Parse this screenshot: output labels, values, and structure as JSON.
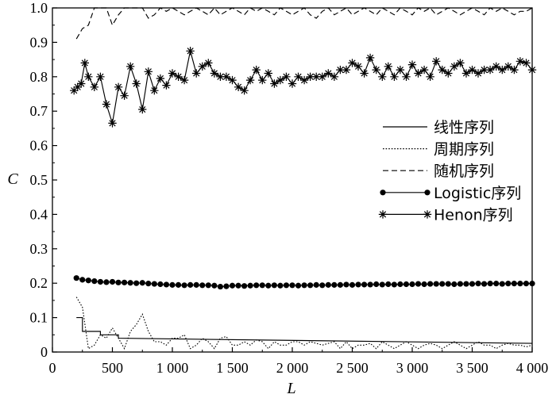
{
  "chart_data": {
    "type": "line",
    "xlabel": "L",
    "ylabel": "C",
    "xlim": [
      0,
      4000
    ],
    "ylim": [
      0,
      1.0
    ],
    "x_ticks": [
      0,
      500,
      1000,
      1500,
      2000,
      2500,
      3000,
      3500,
      4000
    ],
    "x_tick_labels": [
      "0",
      "500",
      "1 000",
      "1 500",
      "2 000",
      "2 500",
      "3 000",
      "3 500",
      "4 000"
    ],
    "y_ticks": [
      0,
      0.1,
      0.2,
      0.3,
      0.4,
      0.5,
      0.6,
      0.7,
      0.8,
      0.9,
      1.0
    ],
    "y_tick_labels": [
      "0",
      "0.1",
      "0.2",
      "0.3",
      "0.4",
      "0.5",
      "0.6",
      "0.7",
      "0.8",
      "0.9",
      "1.0"
    ],
    "grid": false,
    "legend_position": "right-center",
    "series": [
      {
        "name": "线性序列",
        "style": "solid",
        "marker": "none",
        "x": [
          200,
          250,
          250,
          400,
          400,
          550,
          550,
          4000
        ],
        "y": [
          0.1,
          0.1,
          0.06,
          0.06,
          0.05,
          0.05,
          0.04,
          0.025
        ]
      },
      {
        "name": "周期序列",
        "style": "dotted",
        "marker": "none",
        "x": [
          200,
          250,
          300,
          350,
          400,
          450,
          500,
          550,
          600,
          650,
          700,
          750,
          800,
          850,
          900,
          950,
          1000,
          1050,
          1100,
          1150,
          1200,
          1250,
          1300,
          1350,
          1400,
          1450,
          1500,
          1550,
          1600,
          1650,
          1700,
          1750,
          1800,
          1850,
          1900,
          1950,
          2000,
          2050,
          2100,
          2150,
          2200,
          2250,
          2300,
          2350,
          2400,
          2450,
          2500,
          2550,
          2600,
          2650,
          2700,
          2750,
          2800,
          2850,
          2900,
          2950,
          3000,
          3050,
          3100,
          3150,
          3200,
          3250,
          3300,
          3350,
          3400,
          3450,
          3500,
          3550,
          3600,
          3650,
          3700,
          3750,
          3800,
          3850,
          3900,
          3950,
          4000
        ],
        "y": [
          0.16,
          0.13,
          0.01,
          0.02,
          0.05,
          0.04,
          0.07,
          0.04,
          0.01,
          0.06,
          0.08,
          0.11,
          0.06,
          0.03,
          0.03,
          0.02,
          0.04,
          0.04,
          0.05,
          0.01,
          0.02,
          0.04,
          0.03,
          0.01,
          0.04,
          0.045,
          0.02,
          0.02,
          0.03,
          0.02,
          0.035,
          0.03,
          0.01,
          0.03,
          0.02,
          0.02,
          0.03,
          0.03,
          0.02,
          0.03,
          0.025,
          0.02,
          0.025,
          0.03,
          0.01,
          0.03,
          0.01,
          0.02,
          0.02,
          0.025,
          0.01,
          0.03,
          0.02,
          0.01,
          0.02,
          0.03,
          0.02,
          0.01,
          0.02,
          0.025,
          0.02,
          0.01,
          0.02,
          0.03,
          0.02,
          0.01,
          0.02,
          0.03,
          0.02,
          0.02,
          0.01,
          0.02,
          0.025,
          0.02,
          0.02,
          0.015,
          0.02
        ]
      },
      {
        "name": "随机序列",
        "style": "dashed",
        "marker": "none",
        "x": [
          200,
          250,
          300,
          350,
          400,
          450,
          500,
          550,
          600,
          650,
          700,
          750,
          800,
          850,
          900,
          950,
          1000,
          1050,
          1100,
          1150,
          1200,
          1250,
          1300,
          1350,
          1400,
          1450,
          1500,
          1550,
          1600,
          1650,
          1700,
          1750,
          1800,
          1850,
          1900,
          1950,
          2000,
          2050,
          2100,
          2150,
          2200,
          2250,
          2300,
          2350,
          2400,
          2450,
          2500,
          2550,
          2600,
          2650,
          2700,
          2750,
          2800,
          2850,
          2900,
          2950,
          3000,
          3050,
          3100,
          3150,
          3200,
          3250,
          3300,
          3350,
          3400,
          3450,
          3500,
          3550,
          3600,
          3650,
          3700,
          3750,
          3800,
          3850,
          3900,
          3950,
          4000
        ],
        "y": [
          0.91,
          0.94,
          0.95,
          1.0,
          1.0,
          1.0,
          0.95,
          0.98,
          1.0,
          1.0,
          1.0,
          1.0,
          0.97,
          0.98,
          1.0,
          0.99,
          1.0,
          0.99,
          0.98,
          0.99,
          1.0,
          0.99,
          0.98,
          1.0,
          0.98,
          0.99,
          1.0,
          0.99,
          0.98,
          1.0,
          0.99,
          1.0,
          0.99,
          0.98,
          1.0,
          0.99,
          0.98,
          0.99,
          1.0,
          0.98,
          0.97,
          0.99,
          1.0,
          0.98,
          0.99,
          1.0,
          0.98,
          0.99,
          1.0,
          0.99,
          0.98,
          1.0,
          0.99,
          0.98,
          1.0,
          0.99,
          0.98,
          1.0,
          0.99,
          1.0,
          0.98,
          0.99,
          1.0,
          0.99,
          0.98,
          0.99,
          1.0,
          0.99,
          0.98,
          1.0,
          0.99,
          1.0,
          0.99,
          0.98,
          0.99,
          0.99,
          1.0
        ]
      },
      {
        "name": "Logistic序列",
        "style": "solid",
        "marker": "filled-circle",
        "x": [
          200,
          250,
          300,
          350,
          400,
          450,
          500,
          550,
          600,
          650,
          700,
          750,
          800,
          850,
          900,
          950,
          1000,
          1050,
          1100,
          1150,
          1200,
          1250,
          1300,
          1350,
          1400,
          1450,
          1500,
          1550,
          1600,
          1650,
          1700,
          1750,
          1800,
          1850,
          1900,
          1950,
          2000,
          2050,
          2100,
          2150,
          2200,
          2250,
          2300,
          2350,
          2400,
          2450,
          2500,
          2550,
          2600,
          2650,
          2700,
          2750,
          2800,
          2850,
          2900,
          2950,
          3000,
          3050,
          3100,
          3150,
          3200,
          3250,
          3300,
          3350,
          3400,
          3450,
          3500,
          3550,
          3600,
          3650,
          3700,
          3750,
          3800,
          3850,
          3900,
          3950,
          4000
        ],
        "y": [
          0.215,
          0.21,
          0.208,
          0.206,
          0.204,
          0.203,
          0.204,
          0.202,
          0.202,
          0.201,
          0.2,
          0.201,
          0.199,
          0.198,
          0.197,
          0.196,
          0.195,
          0.195,
          0.194,
          0.195,
          0.195,
          0.194,
          0.194,
          0.193,
          0.19,
          0.191,
          0.193,
          0.193,
          0.192,
          0.193,
          0.194,
          0.194,
          0.193,
          0.194,
          0.193,
          0.194,
          0.194,
          0.193,
          0.194,
          0.194,
          0.195,
          0.194,
          0.195,
          0.195,
          0.195,
          0.196,
          0.195,
          0.196,
          0.196,
          0.196,
          0.197,
          0.196,
          0.197,
          0.196,
          0.197,
          0.197,
          0.197,
          0.198,
          0.197,
          0.198,
          0.198,
          0.198,
          0.198,
          0.197,
          0.198,
          0.198,
          0.198,
          0.199,
          0.198,
          0.199,
          0.199,
          0.198,
          0.199,
          0.199,
          0.199,
          0.199,
          0.199
        ]
      },
      {
        "name": "Henon序列",
        "style": "solid",
        "marker": "asterisk",
        "x": [
          180,
          210,
          240,
          270,
          300,
          350,
          400,
          450,
          500,
          550,
          600,
          650,
          700,
          750,
          800,
          850,
          900,
          950,
          1000,
          1050,
          1100,
          1150,
          1200,
          1250,
          1300,
          1350,
          1400,
          1450,
          1500,
          1550,
          1600,
          1650,
          1700,
          1750,
          1800,
          1850,
          1900,
          1950,
          2000,
          2050,
          2100,
          2150,
          2200,
          2250,
          2300,
          2350,
          2400,
          2450,
          2500,
          2550,
          2600,
          2650,
          2700,
          2750,
          2800,
          2850,
          2900,
          2950,
          3000,
          3050,
          3100,
          3150,
          3200,
          3250,
          3300,
          3350,
          3400,
          3450,
          3500,
          3550,
          3600,
          3650,
          3700,
          3750,
          3800,
          3850,
          3900,
          3950,
          4000
        ],
        "y": [
          0.76,
          0.77,
          0.78,
          0.84,
          0.8,
          0.77,
          0.8,
          0.72,
          0.665,
          0.77,
          0.745,
          0.83,
          0.78,
          0.705,
          0.815,
          0.76,
          0.795,
          0.775,
          0.81,
          0.8,
          0.79,
          0.875,
          0.81,
          0.83,
          0.84,
          0.81,
          0.8,
          0.8,
          0.79,
          0.77,
          0.76,
          0.79,
          0.82,
          0.79,
          0.81,
          0.78,
          0.79,
          0.8,
          0.78,
          0.8,
          0.79,
          0.8,
          0.8,
          0.8,
          0.81,
          0.8,
          0.82,
          0.82,
          0.84,
          0.83,
          0.81,
          0.855,
          0.82,
          0.8,
          0.83,
          0.8,
          0.82,
          0.8,
          0.835,
          0.81,
          0.82,
          0.8,
          0.845,
          0.82,
          0.81,
          0.83,
          0.84,
          0.81,
          0.82,
          0.81,
          0.82,
          0.82,
          0.83,
          0.82,
          0.83,
          0.82,
          0.845,
          0.84,
          0.82
        ]
      }
    ]
  }
}
